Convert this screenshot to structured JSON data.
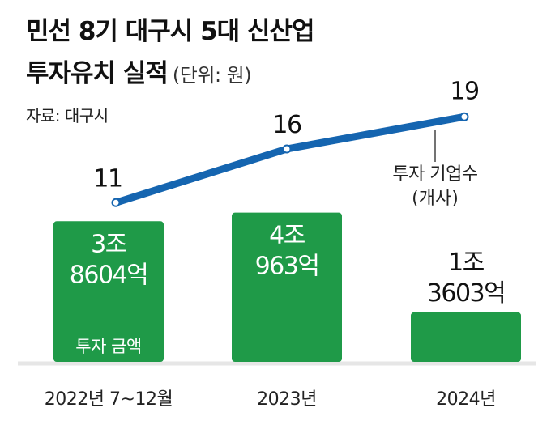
{
  "header": {
    "title_line1": "민선 8기 대구시 5대 신산업",
    "title_line2": "투자유치 실적",
    "unit": "(단위: 원)",
    "source": "자료: 대구시"
  },
  "chart_data": {
    "type": "bar+line",
    "categories": [
      "2022년 7~12월",
      "2023년",
      "2024년"
    ],
    "series": [
      {
        "name": "투자 금액",
        "type": "bar",
        "values": [
          38604,
          40963,
          13603
        ],
        "unit": "억",
        "labels": [
          [
            "3조",
            "8604억"
          ],
          [
            "4조",
            "963억"
          ],
          [
            "1조",
            "3603억"
          ]
        ]
      },
      {
        "name": "투자 기업수",
        "name_line2": "(개사)",
        "type": "line",
        "values": [
          11,
          16,
          19
        ]
      }
    ],
    "colors": {
      "bar": "#1f9a48",
      "line": "#1565b0",
      "marker_fill": "#ffffff"
    }
  }
}
